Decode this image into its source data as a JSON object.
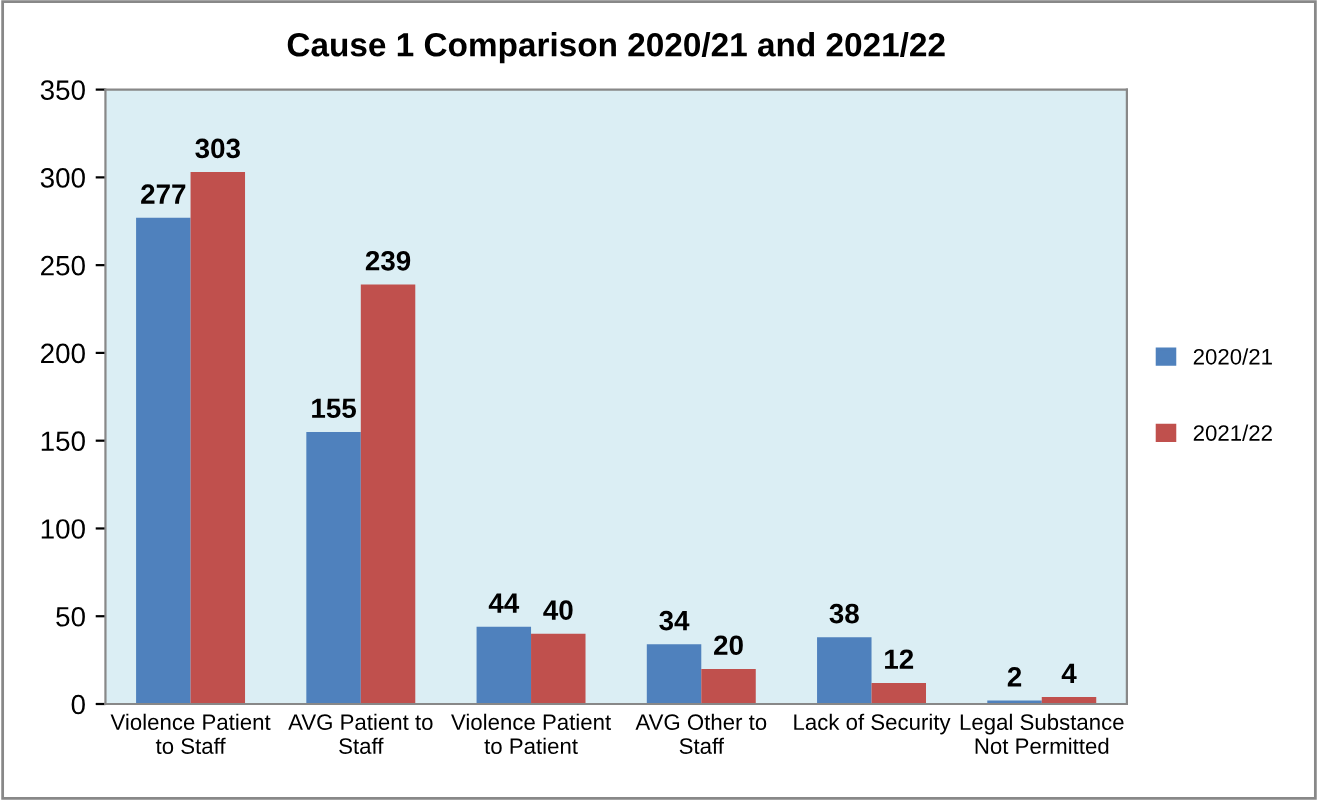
{
  "chart_data": {
    "type": "bar",
    "title": "Cause 1 Comparison 2020/21 and 2021/22",
    "categories": [
      "Violence Patient\nto Staff",
      "AVG Patient to\nStaff",
      "Violence Patient\nto Patient",
      "AVG Other to\nStaff",
      "Lack of Security",
      "Legal Substance\nNot Permitted"
    ],
    "series": [
      {
        "name": "2020/21",
        "color": "#4f81bd",
        "values": [
          277,
          155,
          44,
          34,
          38,
          2
        ]
      },
      {
        "name": "2021/22",
        "color": "#c0504d",
        "values": [
          303,
          239,
          40,
          20,
          12,
          4
        ]
      }
    ],
    "ylim": [
      0,
      350
    ],
    "yticks": [
      0,
      50,
      100,
      150,
      200,
      250,
      300,
      350
    ],
    "grid": false,
    "legend": "right",
    "data_labels": true
  }
}
